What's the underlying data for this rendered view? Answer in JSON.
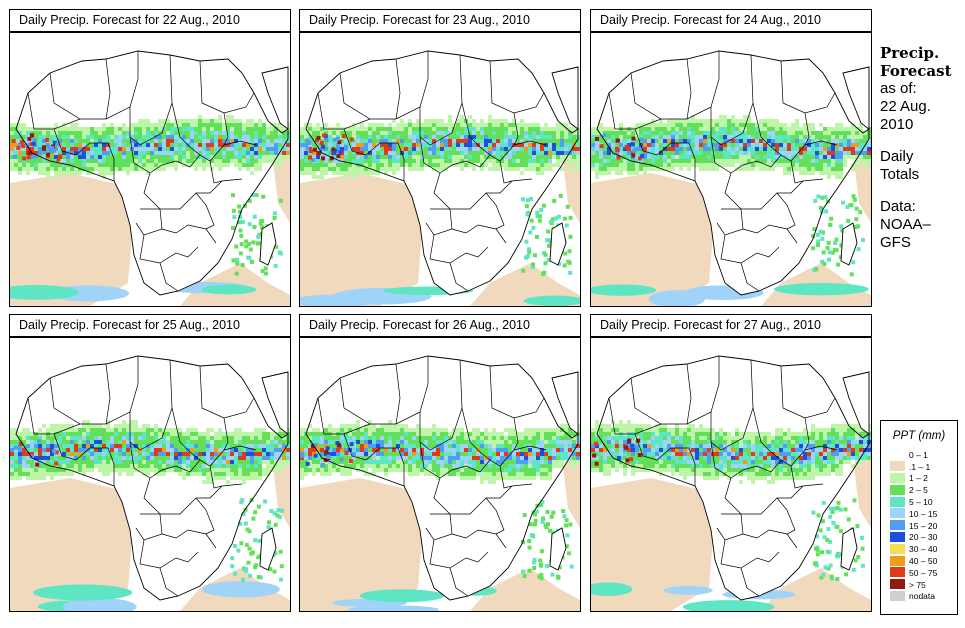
{
  "panels": [
    {
      "title": "Daily Precip. Forecast for  22 Aug., 2010",
      "variant": 0
    },
    {
      "title": "Daily Precip. Forecast for  23 Aug., 2010",
      "variant": 1
    },
    {
      "title": "Daily Precip. Forecast for  24 Aug., 2010",
      "variant": 2
    },
    {
      "title": "Daily Precip. Forecast for  25 Aug., 2010",
      "variant": 3
    },
    {
      "title": "Daily Precip. Forecast for  26 Aug., 2010",
      "variant": 4
    },
    {
      "title": "Daily Precip. Forecast for  27 Aug., 2010",
      "variant": 5
    }
  ],
  "side": {
    "title_line1": "Precip.",
    "title_line2": "Forecast",
    "asof_label": "as of:",
    "date_line1": "22 Aug.",
    "date_line2": "2010",
    "totals_line1": "Daily",
    "totals_line2": "Totals",
    "data_label": "Data:",
    "source_line1": "NOAA–",
    "source_line2": "GFS"
  },
  "legend": {
    "title": "PPT (mm)",
    "items": [
      {
        "label": "0 – 1",
        "color": "#ffffff"
      },
      {
        "label": ".1 – 1",
        "color": "#f0d9bc"
      },
      {
        "label": "1 – 2",
        "color": "#bff5a8"
      },
      {
        "label": "2 – 5",
        "color": "#63e05a"
      },
      {
        "label": "5 – 10",
        "color": "#5ee6c4"
      },
      {
        "label": "10 – 15",
        "color": "#9fd3f7"
      },
      {
        "label": "15 – 20",
        "color": "#4f9ef0"
      },
      {
        "label": "20 – 30",
        "color": "#1f4fd8"
      },
      {
        "label": "30 – 40",
        "color": "#f7dd55"
      },
      {
        "label": "40 – 50",
        "color": "#f29a1c"
      },
      {
        "label": "50 – 75",
        "color": "#e03a1a"
      },
      {
        "label": "> 75",
        "color": "#8f1a0e"
      },
      {
        "label": "nodata",
        "color": "#cfcfcf"
      }
    ]
  }
}
